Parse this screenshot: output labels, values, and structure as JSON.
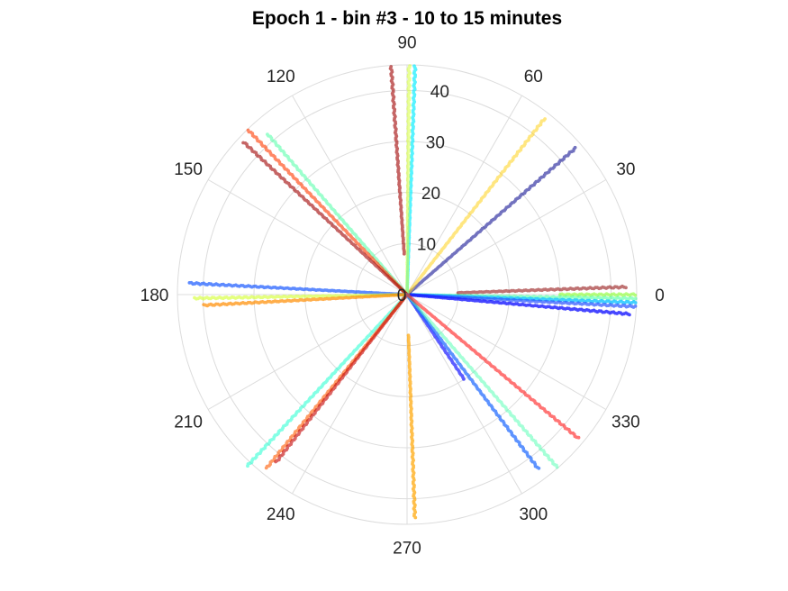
{
  "chart_data": {
    "type": "polar-scatter",
    "title": "Epoch 1 - bin #3 - 10 to 15 minutes",
    "theta_ticks": [
      "0",
      "30",
      "60",
      "90",
      "120",
      "150",
      "180",
      "210",
      "240",
      "270",
      "300",
      "330"
    ],
    "theta_tick_values": [
      0,
      30,
      60,
      90,
      120,
      150,
      180,
      210,
      240,
      270,
      300,
      330
    ],
    "r_ticks": [
      "0",
      "10",
      "20",
      "30",
      "40"
    ],
    "r_tick_values": [
      0,
      10,
      20,
      30,
      40
    ],
    "rlim": [
      0,
      45
    ],
    "grid": true,
    "series": [
      {
        "theta": 2,
        "r_start": 10,
        "r_end": 43,
        "color": "#8b0000",
        "alpha": 0.55
      },
      {
        "theta": 0,
        "r_start": 30,
        "r_end": 45,
        "color": "#9aff4a",
        "alpha": 0.7
      },
      {
        "theta": 359,
        "r_start": 0,
        "r_end": 45,
        "color": "#3cff9a",
        "alpha": 0.55
      },
      {
        "theta": 358,
        "r_start": 0,
        "r_end": 45,
        "color": "#1fc7ff",
        "alpha": 0.85
      },
      {
        "theta": 357,
        "r_start": 0,
        "r_end": 45,
        "color": "#2a54ff",
        "alpha": 0.7
      },
      {
        "theta": 355,
        "r_start": 0,
        "r_end": 44,
        "color": "#1a1aff",
        "alpha": 0.8
      },
      {
        "theta": 41,
        "r_start": 0,
        "r_end": 44,
        "color": "#00008b",
        "alpha": 0.55
      },
      {
        "theta": 52,
        "r_start": 0,
        "r_end": 44,
        "color": "#ffd21a",
        "alpha": 0.55
      },
      {
        "theta": 88,
        "r_start": 0,
        "r_end": 45,
        "color": "#1fefff",
        "alpha": 0.75
      },
      {
        "theta": 89.5,
        "r_start": 0,
        "r_end": 45,
        "color": "#d6ff3a",
        "alpha": 0.55
      },
      {
        "theta": 94,
        "r_start": 8,
        "r_end": 45,
        "color": "#a00000",
        "alpha": 0.6
      },
      {
        "theta": 131,
        "r_start": 0,
        "r_end": 42,
        "color": "#4dffa6",
        "alpha": 0.55
      },
      {
        "theta": 134,
        "r_start": 0,
        "r_end": 45,
        "color": "#ff3a00",
        "alpha": 0.6
      },
      {
        "theta": 137,
        "r_start": 0,
        "r_end": 44,
        "color": "#a00000",
        "alpha": 0.6
      },
      {
        "theta": 177,
        "r_start": 0,
        "r_end": 43,
        "color": "#1a5aff",
        "alpha": 0.7
      },
      {
        "theta": 181,
        "r_start": 0,
        "r_end": 42,
        "color": "#d6ff3a",
        "alpha": 0.65
      },
      {
        "theta": 183,
        "r_start": 0,
        "r_end": 40,
        "color": "#ff8c00",
        "alpha": 0.7
      },
      {
        "theta": 227,
        "r_start": 0,
        "r_end": 46,
        "color": "#1fffd0",
        "alpha": 0.55
      },
      {
        "theta": 231,
        "r_start": 0,
        "r_end": 44,
        "color": "#ff5a00",
        "alpha": 0.6
      },
      {
        "theta": 232,
        "r_start": 0,
        "r_end": 42,
        "color": "#c40000",
        "alpha": 0.6
      },
      {
        "theta": 272,
        "r_start": 8,
        "r_end": 44,
        "color": "#ffa500",
        "alpha": 0.7
      },
      {
        "theta": 304,
        "r_start": 0,
        "r_end": 20,
        "color": "#1a1aff",
        "alpha": 0.7
      },
      {
        "theta": 307,
        "r_start": 0,
        "r_end": 43,
        "color": "#1a66ff",
        "alpha": 0.7
      },
      {
        "theta": 311,
        "r_start": 0,
        "r_end": 45,
        "color": "#4dffb0",
        "alpha": 0.5
      },
      {
        "theta": 320,
        "r_start": 0,
        "r_end": 44,
        "color": "#ff1a1a",
        "alpha": 0.6
      }
    ]
  }
}
